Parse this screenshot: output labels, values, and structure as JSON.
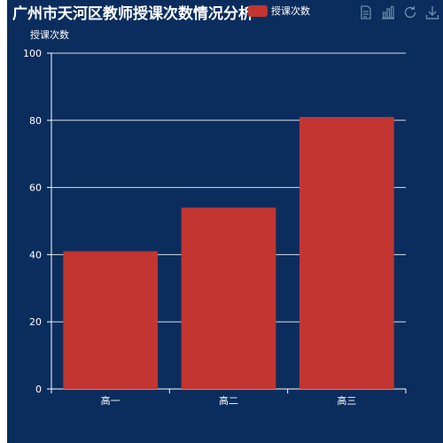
{
  "chart_data": {
    "type": "bar",
    "title": "广州市天河区教师授课次数情况分析",
    "ylabel": "授课次数",
    "legend": [
      "授课次数"
    ],
    "categories": [
      "高一",
      "高二",
      "高三"
    ],
    "series": [
      {
        "name": "授课次数",
        "values": [
          41,
          54,
          81
        ]
      }
    ],
    "ylim": [
      0,
      100
    ],
    "yticks": [
      0,
      20,
      40,
      60,
      80,
      100
    ],
    "grid": true,
    "legend_position": "top-right"
  },
  "colors": {
    "background": "#0b2d5e",
    "bar": "#c23531",
    "text": "#ffffff",
    "toolbox": "#6e8aa8"
  },
  "toolbox": [
    "data-view-icon",
    "bar-switch-icon",
    "restore-icon",
    "download-icon"
  ]
}
